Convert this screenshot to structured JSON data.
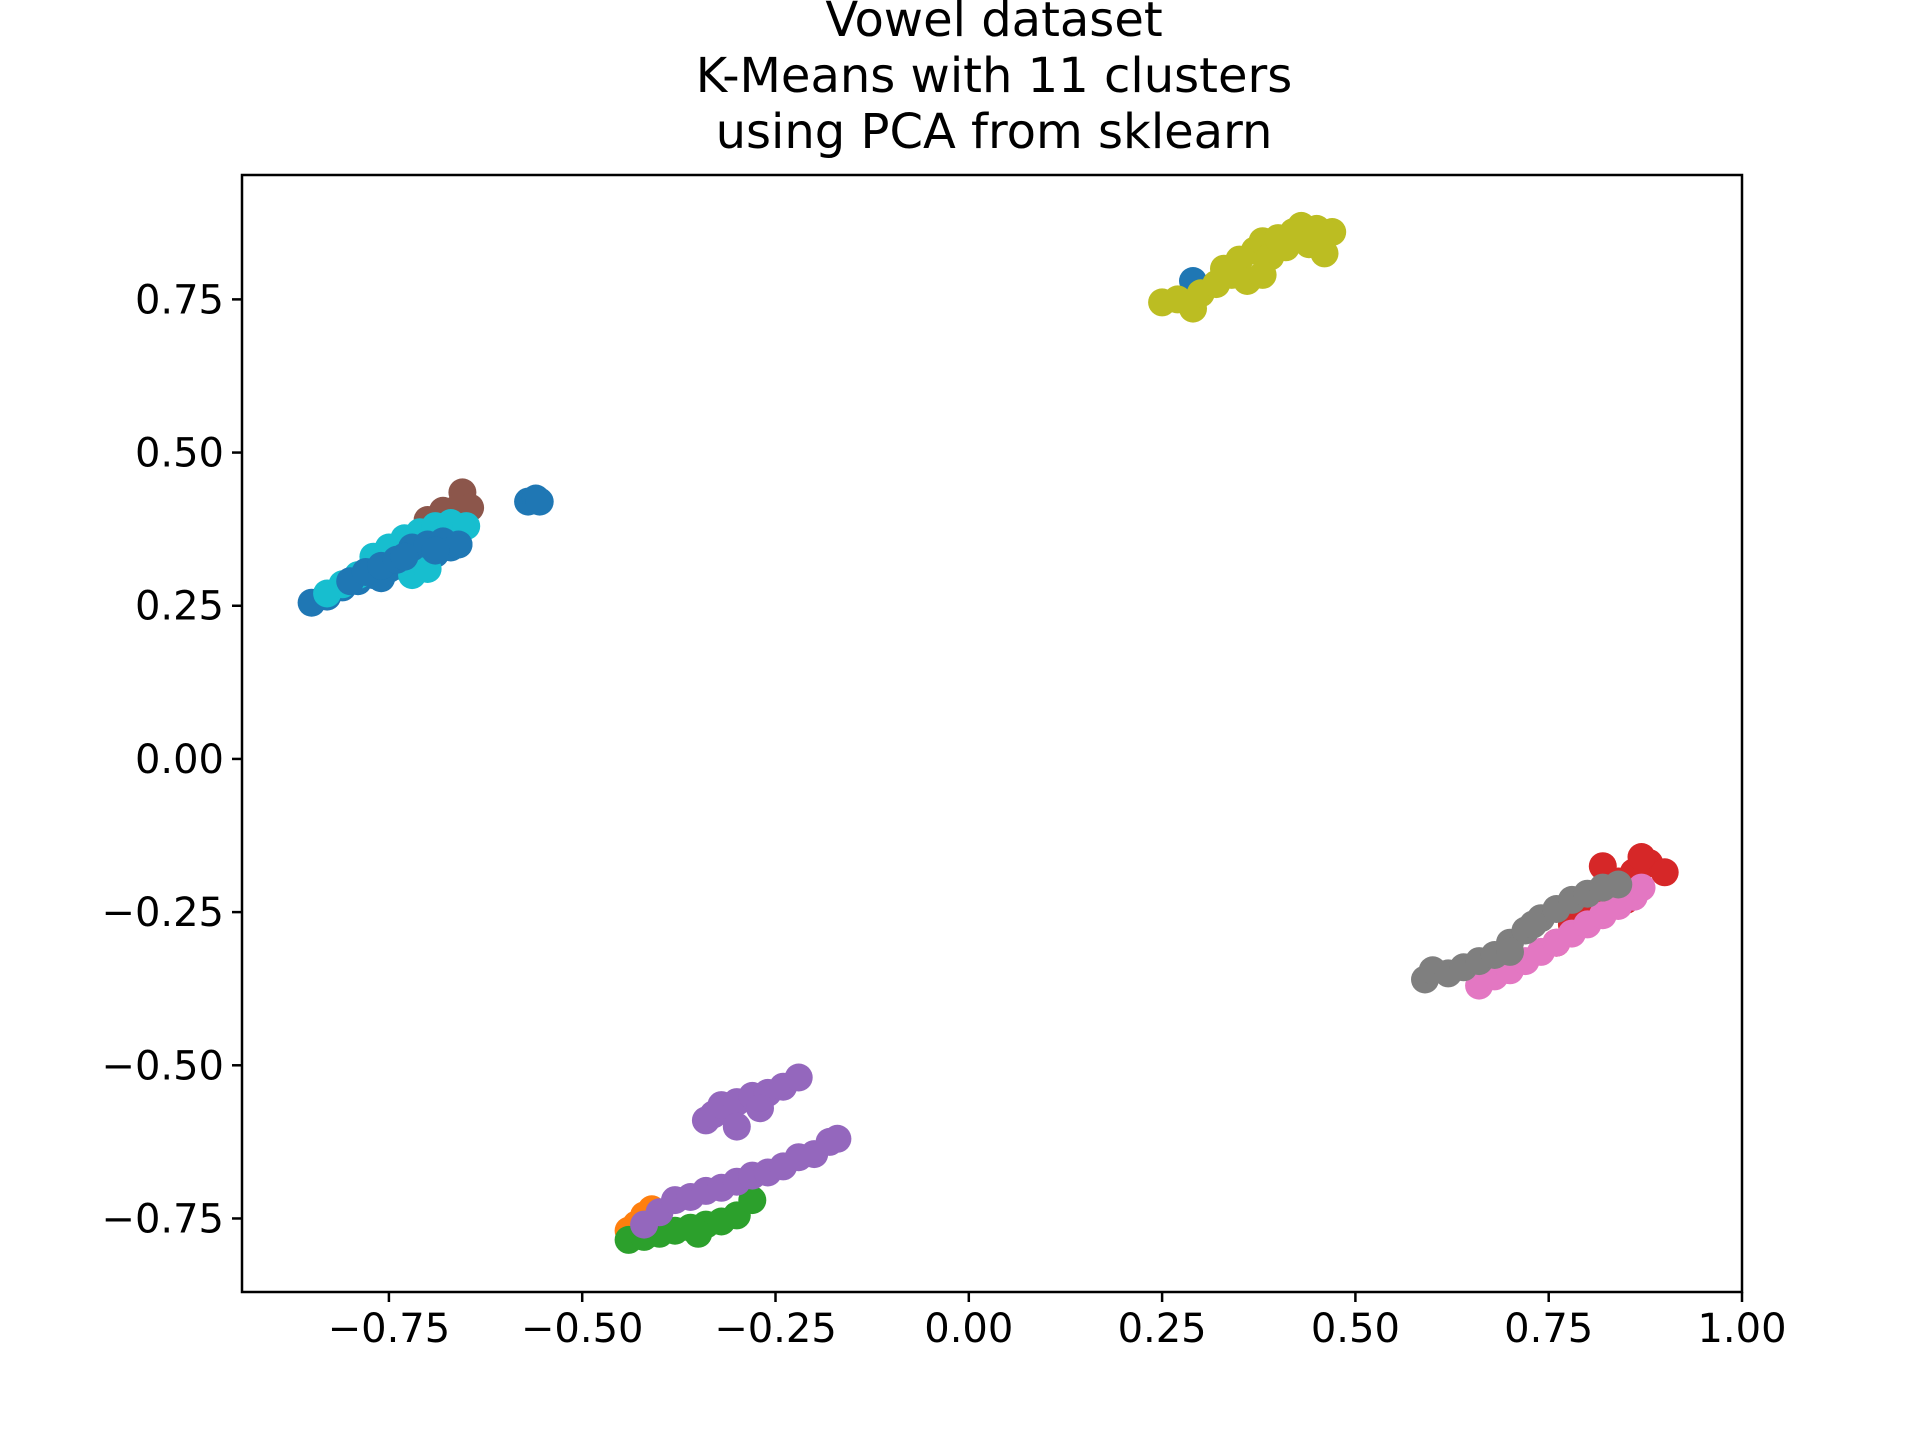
{
  "chart_data": {
    "type": "scatter",
    "title_lines": [
      "Vowel dataset",
      "K-Means with 11 clusters",
      "using PCA from sklearn"
    ],
    "xlabel": "",
    "ylabel": "",
    "xlim": [
      -0.94,
      1.0
    ],
    "ylim": [
      -0.87,
      0.953
    ],
    "xticks": [
      -0.75,
      -0.5,
      -0.25,
      0.0,
      0.25,
      0.5,
      0.75,
      1.0
    ],
    "xtick_labels": [
      "−0.75",
      "−0.50",
      "−0.25",
      "0.00",
      "0.25",
      "0.50",
      "0.75",
      "1.00"
    ],
    "yticks": [
      -0.75,
      -0.5,
      -0.25,
      0.0,
      0.25,
      0.5,
      0.75
    ],
    "ytick_labels": [
      "−0.75",
      "−0.50",
      "−0.25",
      "0.00",
      "0.25",
      "0.50",
      "0.75"
    ],
    "grid": false,
    "legend": "none",
    "series": [
      {
        "color": "#1f77b4",
        "points": [
          [
            -0.85,
            0.255
          ],
          [
            -0.83,
            0.265
          ],
          [
            -0.81,
            0.28
          ],
          [
            -0.79,
            0.29
          ],
          [
            -0.77,
            0.3
          ],
          [
            -0.75,
            0.31
          ],
          [
            -0.73,
            0.32
          ],
          [
            -0.71,
            0.33
          ],
          [
            -0.69,
            0.335
          ],
          [
            -0.67,
            0.345
          ],
          [
            -0.66,
            0.35
          ],
          [
            -0.76,
            0.295
          ],
          [
            -0.74,
            0.315
          ],
          [
            -0.72,
            0.335
          ],
          [
            -0.7,
            0.34
          ],
          [
            -0.57,
            0.42
          ],
          [
            -0.56,
            0.425
          ],
          [
            -0.555,
            0.42
          ],
          [
            0.29,
            0.78
          ]
        ]
      },
      {
        "color": "#ff7f0e",
        "points": [
          [
            -0.44,
            -0.77
          ],
          [
            -0.43,
            -0.76
          ],
          [
            -0.42,
            -0.745
          ],
          [
            -0.41,
            -0.735
          ]
        ]
      },
      {
        "color": "#2ca02c",
        "points": [
          [
            -0.44,
            -0.785
          ],
          [
            -0.42,
            -0.78
          ],
          [
            -0.4,
            -0.775
          ],
          [
            -0.38,
            -0.77
          ],
          [
            -0.36,
            -0.765
          ],
          [
            -0.34,
            -0.76
          ],
          [
            -0.32,
            -0.755
          ],
          [
            -0.3,
            -0.745
          ],
          [
            -0.28,
            -0.72
          ],
          [
            -0.35,
            -0.775
          ]
        ]
      },
      {
        "color": "#d62728",
        "points": [
          [
            0.76,
            -0.3
          ],
          [
            0.78,
            -0.27
          ],
          [
            0.8,
            -0.24
          ],
          [
            0.82,
            -0.22
          ],
          [
            0.84,
            -0.2
          ],
          [
            0.86,
            -0.185
          ],
          [
            0.88,
            -0.17
          ],
          [
            0.9,
            -0.185
          ],
          [
            0.87,
            -0.16
          ],
          [
            0.82,
            -0.175
          ],
          [
            0.85,
            -0.23
          ],
          [
            0.8,
            -0.26
          ]
        ]
      },
      {
        "color": "#9467bd",
        "points": [
          [
            -0.42,
            -0.76
          ],
          [
            -0.4,
            -0.74
          ],
          [
            -0.38,
            -0.72
          ],
          [
            -0.36,
            -0.715
          ],
          [
            -0.34,
            -0.705
          ],
          [
            -0.32,
            -0.7
          ],
          [
            -0.3,
            -0.69
          ],
          [
            -0.28,
            -0.68
          ],
          [
            -0.26,
            -0.675
          ],
          [
            -0.24,
            -0.665
          ],
          [
            -0.22,
            -0.65
          ],
          [
            -0.2,
            -0.645
          ],
          [
            -0.18,
            -0.625
          ],
          [
            -0.17,
            -0.62
          ],
          [
            -0.34,
            -0.59
          ],
          [
            -0.33,
            -0.58
          ],
          [
            -0.32,
            -0.565
          ],
          [
            -0.3,
            -0.56
          ],
          [
            -0.28,
            -0.55
          ],
          [
            -0.26,
            -0.545
          ],
          [
            -0.24,
            -0.535
          ],
          [
            -0.22,
            -0.52
          ],
          [
            -0.3,
            -0.6
          ],
          [
            -0.27,
            -0.57
          ]
        ]
      },
      {
        "color": "#8c564b",
        "points": [
          [
            -0.7,
            0.39
          ],
          [
            -0.68,
            0.405
          ],
          [
            -0.66,
            0.41
          ],
          [
            -0.655,
            0.435
          ],
          [
            -0.645,
            0.41
          ]
        ]
      },
      {
        "color": "#e377c2",
        "points": [
          [
            0.66,
            -0.37
          ],
          [
            0.68,
            -0.355
          ],
          [
            0.7,
            -0.345
          ],
          [
            0.72,
            -0.33
          ],
          [
            0.74,
            -0.315
          ],
          [
            0.76,
            -0.3
          ],
          [
            0.78,
            -0.285
          ],
          [
            0.8,
            -0.27
          ],
          [
            0.82,
            -0.255
          ],
          [
            0.84,
            -0.24
          ],
          [
            0.86,
            -0.225
          ],
          [
            0.87,
            -0.21
          ]
        ]
      },
      {
        "color": "#7f7f7f",
        "points": [
          [
            0.59,
            -0.36
          ],
          [
            0.6,
            -0.345
          ],
          [
            0.62,
            -0.35
          ],
          [
            0.64,
            -0.34
          ],
          [
            0.66,
            -0.33
          ],
          [
            0.68,
            -0.32
          ],
          [
            0.7,
            -0.3
          ],
          [
            0.72,
            -0.28
          ],
          [
            0.74,
            -0.26
          ],
          [
            0.76,
            -0.245
          ],
          [
            0.78,
            -0.23
          ],
          [
            0.8,
            -0.22
          ],
          [
            0.82,
            -0.21
          ],
          [
            0.84,
            -0.205
          ],
          [
            0.7,
            -0.315
          ],
          [
            0.73,
            -0.27
          ]
        ]
      },
      {
        "color": "#bcbd22",
        "points": [
          [
            0.25,
            0.745
          ],
          [
            0.27,
            0.75
          ],
          [
            0.29,
            0.735
          ],
          [
            0.3,
            0.76
          ],
          [
            0.32,
            0.775
          ],
          [
            0.33,
            0.8
          ],
          [
            0.35,
            0.815
          ],
          [
            0.36,
            0.78
          ],
          [
            0.37,
            0.83
          ],
          [
            0.38,
            0.845
          ],
          [
            0.39,
            0.82
          ],
          [
            0.4,
            0.85
          ],
          [
            0.41,
            0.835
          ],
          [
            0.42,
            0.86
          ],
          [
            0.43,
            0.87
          ],
          [
            0.44,
            0.84
          ],
          [
            0.45,
            0.865
          ],
          [
            0.46,
            0.825
          ],
          [
            0.47,
            0.86
          ],
          [
            0.38,
            0.79
          ],
          [
            0.34,
            0.79
          ]
        ]
      },
      {
        "color": "#17becf",
        "points": [
          [
            -0.83,
            0.27
          ],
          [
            -0.81,
            0.285
          ],
          [
            -0.79,
            0.3
          ],
          [
            -0.77,
            0.33
          ],
          [
            -0.75,
            0.345
          ],
          [
            -0.73,
            0.36
          ],
          [
            -0.71,
            0.37
          ],
          [
            -0.69,
            0.38
          ],
          [
            -0.67,
            0.385
          ],
          [
            -0.65,
            0.38
          ],
          [
            -0.72,
            0.3
          ],
          [
            -0.7,
            0.31
          ]
        ]
      },
      {
        "color": "#1f77b4",
        "points": [
          [
            -0.8,
            0.29
          ],
          [
            -0.78,
            0.305
          ],
          [
            -0.76,
            0.315
          ],
          [
            -0.74,
            0.325
          ],
          [
            -0.72,
            0.345
          ],
          [
            -0.7,
            0.35
          ],
          [
            -0.68,
            0.355
          ],
          [
            -0.66,
            0.35
          ],
          [
            -0.73,
            0.33
          ],
          [
            -0.69,
            0.34
          ]
        ]
      }
    ]
  }
}
